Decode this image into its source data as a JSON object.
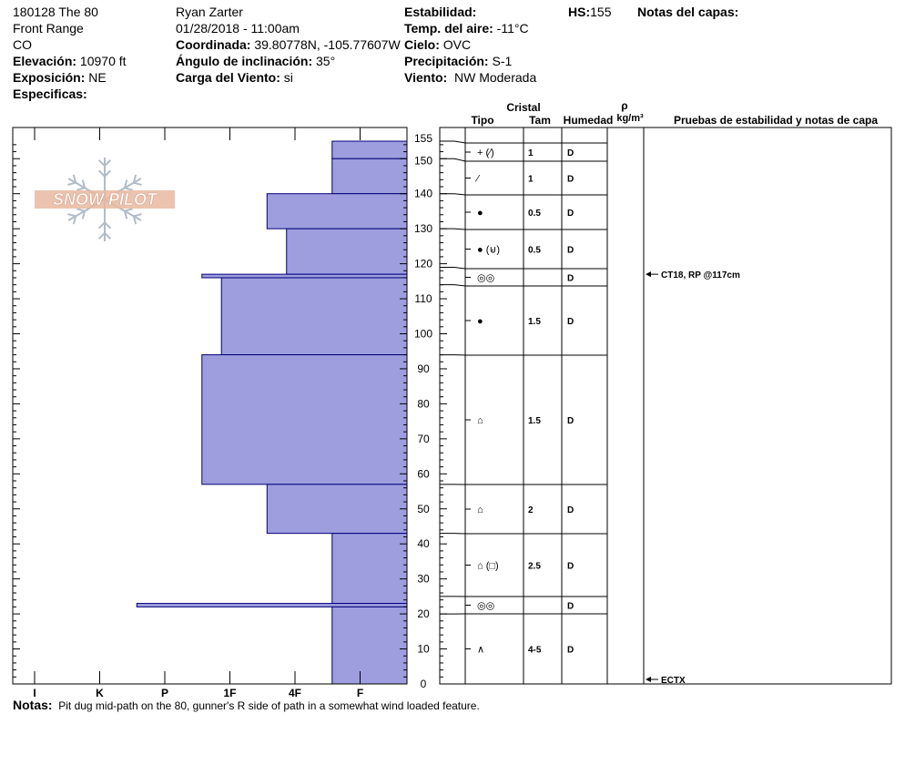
{
  "header": {
    "pit": "180128 The 80",
    "range": "Front Range",
    "state": "CO",
    "elevation_label": "Elevación:",
    "elevation": "10970 ft",
    "aspect_label": "Exposición:",
    "aspect": "NE",
    "specifics_label": "Especificas:",
    "observer": "Ryan Zarter",
    "datetime": "01/28/2018 - 11:00am",
    "coord_label": "Coordinada:",
    "coord": "39.80778N, -105.77607W",
    "slope_label": "Ángulo de inclinación:",
    "slope": "35°",
    "wind_load_label": "Carga del Viento:",
    "wind_load": "si",
    "stability_label": "Estabilidad:",
    "air_temp_label": "Temp. del aire:",
    "air_temp": "-11°C",
    "sky_label": "Cielo:",
    "sky": "OVC",
    "precip_label": "Precipitación:",
    "precip": "S-1",
    "wind_label": "Viento:",
    "wind": "NW Moderada",
    "hs_label": "HS:",
    "hs": "155",
    "layer_notes_label": "Notas del capas:"
  },
  "logo": {
    "text": "SNOW PILOT"
  },
  "table_headers": {
    "cristal": "Cristal",
    "tipo": "Tipo",
    "tam": "Tam",
    "humedad": "Humedad",
    "rho": "ρ",
    "density_unit": "kg/m³",
    "tests": "Pruebas de estabilidad y notas de capa"
  },
  "chart_data": {
    "type": "bar",
    "orientation": "horizontal-profile",
    "y_axis": {
      "label": "",
      "min": 0,
      "max": 155,
      "ticks": [
        0,
        10,
        20,
        30,
        40,
        50,
        60,
        70,
        80,
        90,
        100,
        110,
        120,
        130,
        140,
        150,
        155
      ]
    },
    "hardness_scale": [
      "I",
      "K",
      "P",
      "1F",
      "4F",
      "F"
    ],
    "hardness_layers": [
      {
        "top": 155,
        "bottom": 150,
        "hardness_index": 0.65
      },
      {
        "top": 150,
        "bottom": 140,
        "hardness_index": 0.65
      },
      {
        "top": 140,
        "bottom": 130,
        "hardness_index": 1.65
      },
      {
        "top": 130,
        "bottom": 117,
        "hardness_index": 1.35
      },
      {
        "top": 117,
        "bottom": 116,
        "hardness_index": 2.65
      },
      {
        "top": 116,
        "bottom": 94,
        "hardness_index": 2.35
      },
      {
        "top": 94,
        "bottom": 57,
        "hardness_index": 2.65
      },
      {
        "top": 57,
        "bottom": 43,
        "hardness_index": 1.65
      },
      {
        "top": 43,
        "bottom": 23,
        "hardness_index": 0.65
      },
      {
        "top": 23,
        "bottom": 22,
        "hardness_index": 3.65
      },
      {
        "top": 22,
        "bottom": 0,
        "hardness_index": 0.65
      }
    ],
    "layers": [
      {
        "top": 155,
        "bottom": 150,
        "tipo": "+ (⁄)",
        "tam": "1",
        "humedad": "D"
      },
      {
        "top": 150,
        "bottom": 140,
        "tipo": "⁄",
        "tam": "1",
        "humedad": "D"
      },
      {
        "top": 140,
        "bottom": 130,
        "tipo": "●",
        "tam": "0.5",
        "humedad": "D"
      },
      {
        "top": 130,
        "bottom": 119,
        "tipo": "● (⊌)",
        "tam": "0.5",
        "humedad": "D"
      },
      {
        "top": 119,
        "bottom": 114,
        "tipo": "◎◎",
        "tam": "",
        "humedad": "D"
      },
      {
        "top": 114,
        "bottom": 94,
        "tipo": "●",
        "tam": "1.5",
        "humedad": "D"
      },
      {
        "top": 94,
        "bottom": 57,
        "tipo": "⌂",
        "tam": "1.5",
        "humedad": "D"
      },
      {
        "top": 57,
        "bottom": 43,
        "tipo": "⌂",
        "tam": "2",
        "humedad": "D"
      },
      {
        "top": 43,
        "bottom": 25,
        "tipo": "⌂ (□)",
        "tam": "2.5",
        "humedad": "D"
      },
      {
        "top": 25,
        "bottom": 20,
        "tipo": "◎◎",
        "tam": "",
        "humedad": "D"
      },
      {
        "top": 20,
        "bottom": 0,
        "tipo": "∧",
        "tam": "4-5",
        "humedad": "D"
      }
    ],
    "tests": [
      {
        "depth": 117,
        "text": "CT18, RP @117cm"
      },
      {
        "depth": 0,
        "text": "ECTX"
      }
    ]
  },
  "notes": {
    "label": "Notas:",
    "text": "Pit dug mid-path on the 80, gunner's R side of path in a somewhat wind loaded feature."
  },
  "colors": {
    "fill": "#9e9ede",
    "stroke": "#00007a",
    "logo": "#e8b8a0"
  }
}
